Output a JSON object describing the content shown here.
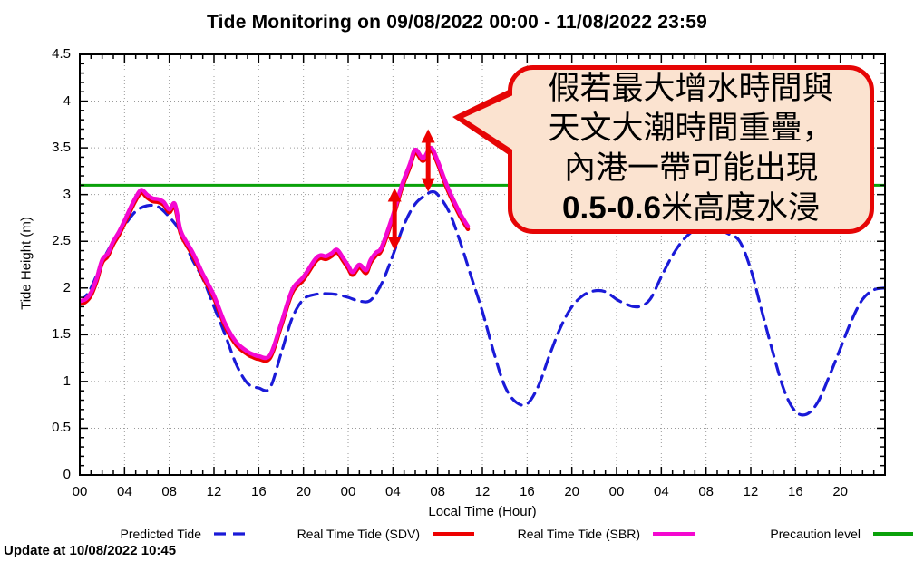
{
  "chart_data": {
    "type": "line",
    "title": "Tide Monitoring on 09/08/2022 00:00 - 11/08/2022 23:59",
    "xlabel": "Local Time (Hour)",
    "ylabel": "Tide Height (m)",
    "xlim_hours": [
      0,
      72
    ],
    "ylim": [
      0,
      4.5
    ],
    "x_tick_interval_hours": 4,
    "x_minor_tick_hours": 1,
    "y_tick_interval": 0.5,
    "y_minor_tick": 0.1,
    "grid": true,
    "x_tick_labels": [
      "00",
      "04",
      "08",
      "12",
      "16",
      "20",
      "00",
      "04",
      "08",
      "12",
      "16",
      "20",
      "00",
      "04",
      "08",
      "12",
      "16",
      "20"
    ],
    "y_tick_labels": [
      "0",
      "0.5",
      "1",
      "1.5",
      "2",
      "2.5",
      "3",
      "3.5",
      "4",
      "4.5"
    ],
    "precaution_level_m": 3.1,
    "series": [
      {
        "name": "Predicted Tide",
        "color": "#1a1ad8",
        "style": "dashed",
        "width": 3.2,
        "points": [
          [
            0,
            1.83
          ],
          [
            1,
            2.0
          ],
          [
            2,
            2.28
          ],
          [
            3,
            2.5
          ],
          [
            4,
            2.67
          ],
          [
            5,
            2.82
          ],
          [
            6,
            2.88
          ],
          [
            7,
            2.87
          ],
          [
            8,
            2.76
          ],
          [
            9,
            2.6
          ],
          [
            10,
            2.32
          ],
          [
            11,
            2.1
          ],
          [
            12,
            1.8
          ],
          [
            13,
            1.5
          ],
          [
            14,
            1.18
          ],
          [
            15,
            0.98
          ],
          [
            16,
            0.93
          ],
          [
            17,
            0.93
          ],
          [
            18,
            1.3
          ],
          [
            19,
            1.68
          ],
          [
            20,
            1.88
          ],
          [
            21,
            1.93
          ],
          [
            22,
            1.94
          ],
          [
            23,
            1.93
          ],
          [
            24,
            1.9
          ],
          [
            25,
            1.86
          ],
          [
            26,
            1.87
          ],
          [
            27,
            2.05
          ],
          [
            28,
            2.35
          ],
          [
            29,
            2.68
          ],
          [
            30,
            2.9
          ],
          [
            31,
            3.0
          ],
          [
            31.5,
            3.03
          ],
          [
            32,
            3.0
          ],
          [
            33,
            2.82
          ],
          [
            34,
            2.5
          ],
          [
            35,
            2.12
          ],
          [
            36,
            1.75
          ],
          [
            37,
            1.32
          ],
          [
            38,
            0.95
          ],
          [
            39,
            0.78
          ],
          [
            40,
            0.76
          ],
          [
            41,
            0.95
          ],
          [
            42,
            1.28
          ],
          [
            43,
            1.58
          ],
          [
            44,
            1.8
          ],
          [
            45,
            1.92
          ],
          [
            46,
            1.97
          ],
          [
            47,
            1.96
          ],
          [
            48,
            1.88
          ],
          [
            49,
            1.82
          ],
          [
            50,
            1.8
          ],
          [
            51,
            1.88
          ],
          [
            52,
            2.12
          ],
          [
            53,
            2.35
          ],
          [
            54,
            2.52
          ],
          [
            55,
            2.62
          ],
          [
            56,
            2.65
          ],
          [
            57,
            2.63
          ],
          [
            58,
            2.58
          ],
          [
            59,
            2.5
          ],
          [
            60,
            2.2
          ],
          [
            61,
            1.75
          ],
          [
            62,
            1.3
          ],
          [
            63,
            0.9
          ],
          [
            64,
            0.68
          ],
          [
            65,
            0.65
          ],
          [
            66,
            0.78
          ],
          [
            67,
            1.05
          ],
          [
            68,
            1.35
          ],
          [
            69,
            1.65
          ],
          [
            70,
            1.88
          ],
          [
            71,
            1.98
          ],
          [
            72,
            2.0
          ]
        ]
      },
      {
        "name": "Real Time Tide (SDV)",
        "color": "#ed0000",
        "style": "solid",
        "width": 4.5,
        "same_points_as": "Real Time Tide (SBR)",
        "y_offset_m": -0.03
      },
      {
        "name": "Real Time Tide (SBR)",
        "color": "#f408d0",
        "style": "solid",
        "width": 4.5,
        "points": [
          [
            0,
            1.86
          ],
          [
            0.5,
            1.88
          ],
          [
            1,
            1.95
          ],
          [
            1.5,
            2.1
          ],
          [
            2,
            2.3
          ],
          [
            2.5,
            2.37
          ],
          [
            3,
            2.5
          ],
          [
            3.5,
            2.6
          ],
          [
            4,
            2.72
          ],
          [
            4.5,
            2.85
          ],
          [
            5,
            2.97
          ],
          [
            5.5,
            3.05
          ],
          [
            6,
            3.0
          ],
          [
            6.5,
            2.96
          ],
          [
            7,
            2.95
          ],
          [
            7.5,
            2.92
          ],
          [
            8,
            2.84
          ],
          [
            8.5,
            2.9
          ],
          [
            9,
            2.62
          ],
          [
            9.5,
            2.5
          ],
          [
            10,
            2.4
          ],
          [
            10.5,
            2.28
          ],
          [
            11,
            2.15
          ],
          [
            12,
            1.92
          ],
          [
            13,
            1.62
          ],
          [
            14,
            1.42
          ],
          [
            15,
            1.32
          ],
          [
            15.5,
            1.29
          ],
          [
            16,
            1.27
          ],
          [
            17,
            1.28
          ],
          [
            18,
            1.62
          ],
          [
            19,
            1.98
          ],
          [
            20,
            2.12
          ],
          [
            21,
            2.3
          ],
          [
            21.5,
            2.35
          ],
          [
            22,
            2.34
          ],
          [
            22.5,
            2.37
          ],
          [
            23,
            2.41
          ],
          [
            23.5,
            2.33
          ],
          [
            24,
            2.24
          ],
          [
            24.4,
            2.17
          ],
          [
            25,
            2.25
          ],
          [
            25.6,
            2.19
          ],
          [
            26,
            2.3
          ],
          [
            26.5,
            2.38
          ],
          [
            27,
            2.44
          ],
          [
            28,
            2.78
          ],
          [
            28.8,
            3.1
          ],
          [
            29.5,
            3.32
          ],
          [
            30,
            3.48
          ],
          [
            30.7,
            3.39
          ],
          [
            31.4,
            3.5
          ],
          [
            32,
            3.36
          ],
          [
            32.5,
            3.2
          ],
          [
            33,
            3.05
          ],
          [
            33.5,
            2.92
          ],
          [
            34,
            2.8
          ],
          [
            34.7,
            2.66
          ]
        ]
      }
    ],
    "annotations": {
      "surge_arrows": [
        {
          "x_hour": 28.15,
          "y_from_m": 2.4,
          "y_to_m": 3.07
        },
        {
          "x_hour": 31.15,
          "y_from_m": 3.03,
          "y_to_m": 3.7
        }
      ],
      "callout": {
        "lines": [
          "假若最大增水時間與",
          "天文大潮時間重疊，",
          "內港一帶可能出現"
        ],
        "line4_bold": "0.5-0.6",
        "line4_rest": "米高度水浸"
      }
    }
  },
  "legend": {
    "items": [
      {
        "label": "Predicted Tide",
        "color": "#1a1ad8",
        "style": "dashed"
      },
      {
        "label": "Real Time Tide (SDV)",
        "color": "#ed0000",
        "style": "solid"
      },
      {
        "label": "Real Time Tide (SBR)",
        "color": "#f408d0",
        "style": "solid"
      },
      {
        "label": "Precaution level",
        "color": "#0aa10a",
        "style": "solid"
      }
    ]
  },
  "footer": {
    "update_text": "Update at 10/08/2022 10:45"
  },
  "colors": {
    "grid": "#9a9a9a",
    "axis": "#000000",
    "arrow": "#ed0000",
    "precaution": "#0aa10a",
    "callout_fill": "#fbe3d0",
    "callout_border": "#e60505"
  }
}
